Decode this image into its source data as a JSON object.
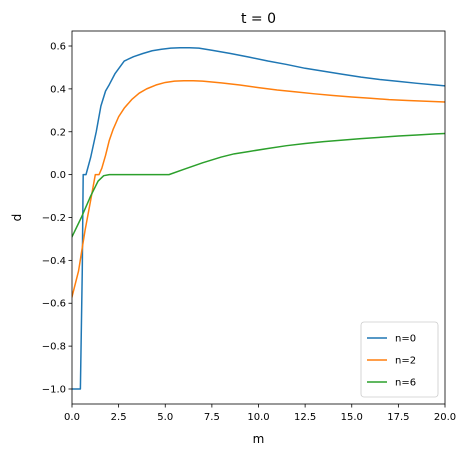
{
  "chart_data": {
    "type": "line",
    "title": "t = 0",
    "xlabel": "m",
    "ylabel": "d",
    "xlim": [
      0,
      20
    ],
    "ylim": [
      -1.07,
      0.67
    ],
    "xticks": [
      0,
      2.5,
      5,
      7.5,
      10,
      12.5,
      15,
      17.5,
      20
    ],
    "xtick_labels": [
      "0.0",
      "2.5",
      "5.0",
      "7.5",
      "10.0",
      "12.5",
      "15.0",
      "17.5",
      "20.0"
    ],
    "yticks": [
      -1.0,
      -0.8,
      -0.6,
      -0.4,
      -0.2,
      0.0,
      0.2,
      0.4,
      0.6
    ],
    "ytick_labels": [
      "−1.0",
      "−0.8",
      "−0.6",
      "−0.4",
      "−0.2",
      "0.0",
      "0.2",
      "0.4",
      "0.6"
    ],
    "grid": false,
    "legend_position": "lower-right",
    "series": [
      {
        "name": "n=0",
        "color": "#1f77b4",
        "x": [
          0,
          0.45,
          0.55,
          0.6,
          0.75,
          1.0,
          1.3,
          1.55,
          1.8,
          2.0,
          2.3,
          2.8,
          3.3,
          3.8,
          4.3,
          4.8,
          5.3,
          5.8,
          6.3,
          6.8,
          7.5,
          8.5,
          9.5,
          10.5,
          11.5,
          12.5,
          13.5,
          14.5,
          15.5,
          16.5,
          17.5,
          18.5,
          19.5,
          20
        ],
        "y": [
          -1.0,
          -1.0,
          -0.45,
          0.0,
          0.0,
          0.08,
          0.2,
          0.32,
          0.39,
          0.42,
          0.47,
          0.53,
          0.55,
          0.565,
          0.578,
          0.585,
          0.59,
          0.592,
          0.592,
          0.59,
          0.58,
          0.565,
          0.548,
          0.53,
          0.514,
          0.496,
          0.482,
          0.468,
          0.455,
          0.444,
          0.435,
          0.426,
          0.418,
          0.414
        ]
      },
      {
        "name": "n=2",
        "color": "#ff7f0e",
        "x": [
          0,
          0.35,
          0.7,
          1.0,
          1.25,
          1.45,
          1.6,
          1.8,
          2.0,
          2.2,
          2.5,
          2.8,
          3.2,
          3.6,
          4.0,
          4.5,
          5.0,
          5.5,
          6.0,
          6.5,
          7.0,
          8.0,
          9.0,
          10.0,
          11.0,
          12.0,
          13.0,
          14.0,
          15.0,
          16.0,
          17.0,
          18.0,
          19.0,
          20
        ],
        "y": [
          -0.57,
          -0.45,
          -0.26,
          -0.12,
          0.0,
          0.0,
          0.03,
          0.09,
          0.16,
          0.21,
          0.27,
          0.31,
          0.35,
          0.38,
          0.4,
          0.418,
          0.43,
          0.436,
          0.438,
          0.438,
          0.436,
          0.428,
          0.418,
          0.406,
          0.395,
          0.386,
          0.377,
          0.369,
          0.362,
          0.356,
          0.35,
          0.346,
          0.342,
          0.339
        ]
      },
      {
        "name": "n=6",
        "color": "#2ca02c",
        "x": [
          0,
          0.5,
          1.0,
          1.4,
          1.7,
          2.0,
          3.0,
          4.0,
          5.0,
          5.2,
          6.0,
          7.0,
          8.0,
          8.7,
          9.5,
          10.5,
          11.5,
          12.5,
          13.5,
          14.5,
          15.5,
          16.5,
          17.5,
          18.5,
          19.5,
          20
        ],
        "y": [
          -0.29,
          -0.2,
          -0.1,
          -0.03,
          -0.005,
          0.0,
          0.0,
          0.0,
          0.0,
          0.0,
          0.025,
          0.055,
          0.082,
          0.097,
          0.108,
          0.122,
          0.135,
          0.145,
          0.154,
          0.161,
          0.168,
          0.174,
          0.18,
          0.185,
          0.19,
          0.192
        ]
      }
    ]
  }
}
